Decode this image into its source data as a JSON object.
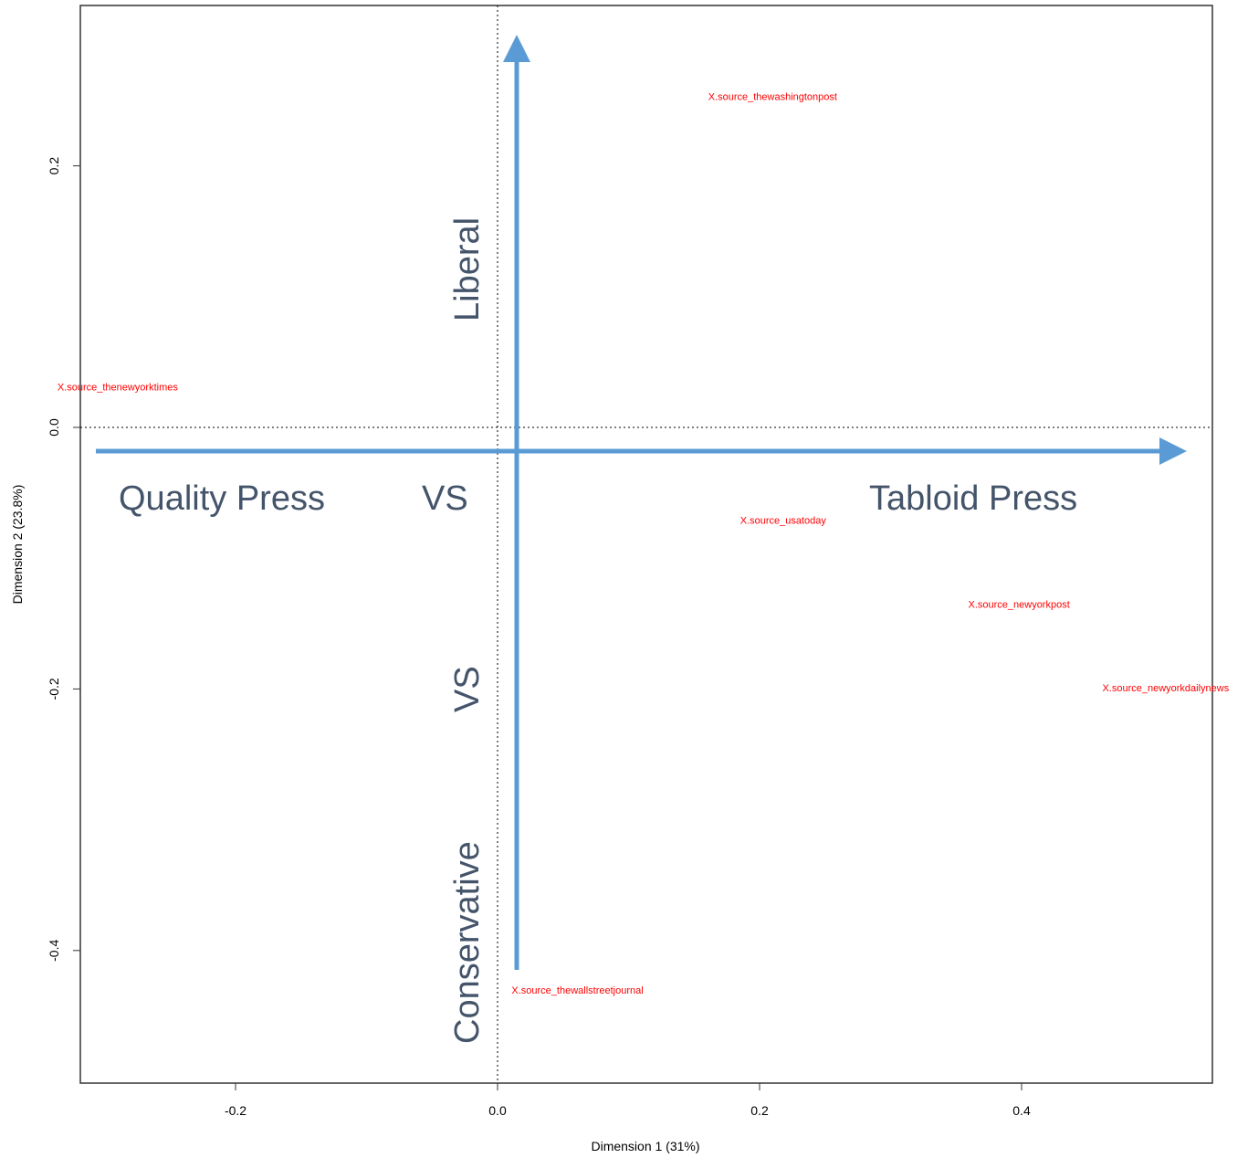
{
  "chart_data": {
    "type": "scatter",
    "title": "",
    "xlabel": "Dimension 1 (31%)",
    "ylabel": "Dimension 2 (23.8%)",
    "xlim": [
      -0.32,
      0.55
    ],
    "ylim": [
      -0.5,
      0.32
    ],
    "x_ticks": [
      {
        "value": -0.2,
        "label": "-0.2"
      },
      {
        "value": 0.0,
        "label": "0.0"
      },
      {
        "value": 0.2,
        "label": "0.2"
      },
      {
        "value": 0.4,
        "label": "0.4"
      }
    ],
    "y_ticks": [
      {
        "value": 0.2,
        "label": "0.2"
      },
      {
        "value": 0.0,
        "label": "0.0"
      },
      {
        "value": -0.2,
        "label": "-0.2"
      },
      {
        "value": -0.4,
        "label": "-0.4"
      }
    ],
    "reference_lines": {
      "x": 0,
      "y": 0,
      "style": "dotted"
    },
    "points": [
      {
        "label": "X.source_thewashingtonpost",
        "x": 0.21,
        "y": 0.253
      },
      {
        "label": "X.source_thenewyorktimes",
        "x": -0.29,
        "y": 0.031
      },
      {
        "label": "X.source_usatoday",
        "x": 0.218,
        "y": -0.071
      },
      {
        "label": "X.source_newyorkpost",
        "x": 0.398,
        "y": -0.135
      },
      {
        "label": "X.source_newyorkdailynews",
        "x": 0.51,
        "y": -0.199
      },
      {
        "label": "X.source_thewallstreetjournal",
        "x": 0.061,
        "y": -0.43
      }
    ],
    "point_color": "#ff0000",
    "annotations": {
      "arrow_color": "#5b9bd5",
      "text_color": "#44546a",
      "horizontal_left": "Quality Press",
      "horizontal_vs": "VS",
      "horizontal_right": "Tabloid Press",
      "vertical_top": "Liberal",
      "vertical_vs": "VS",
      "vertical_bottom": "Conservative"
    }
  }
}
